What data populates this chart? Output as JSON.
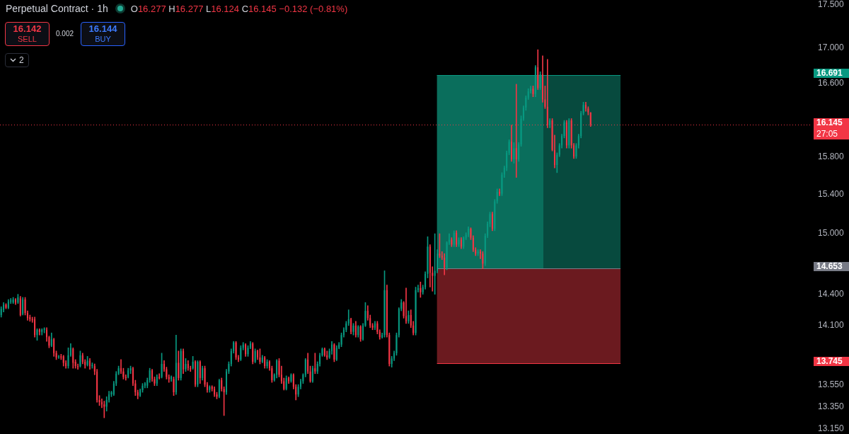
{
  "chart_data": {
    "type": "candlestick",
    "title": "Perpetual Contract · 1h",
    "annotations": [
      "O16.277 H16.277 L16.124 C16.145 −0.132 (−0.81%)",
      "16.142",
      "SELL",
      "0.002",
      "16.144",
      "BUY",
      "2",
      "27:05",
      "16.691",
      "14.653",
      "13.745"
    ],
    "categories": [
      null,
      null,
      null,
      null,
      null,
      null,
      null,
      null,
      null,
      null,
      null,
      null,
      null,
      null,
      null,
      null,
      null,
      null,
      null,
      null,
      null,
      null,
      null,
      null,
      null,
      null,
      null,
      null,
      null,
      null,
      null,
      null,
      null,
      null,
      null,
      null,
      null,
      null,
      null,
      null,
      null,
      null,
      null,
      null,
      null,
      null,
      null,
      null,
      null,
      null,
      null,
      null,
      null,
      null,
      null,
      null,
      null,
      null,
      null,
      null,
      null,
      null,
      null,
      null,
      null,
      null,
      null,
      null,
      null,
      null,
      null,
      null,
      null,
      null,
      null,
      null,
      null,
      null,
      null,
      null,
      null,
      null,
      null,
      null,
      null,
      null,
      null,
      null,
      null,
      null,
      null,
      null,
      null,
      null,
      null,
      null,
      null,
      null,
      null,
      null,
      null,
      null,
      null,
      null,
      null,
      null,
      null,
      null,
      null,
      null,
      null,
      null,
      null,
      null,
      null,
      null,
      null,
      null,
      null,
      null,
      null,
      null,
      null,
      null,
      null,
      null,
      null,
      null,
      null,
      null,
      null,
      null,
      null,
      null,
      null,
      null,
      null,
      null,
      null,
      null,
      null,
      null,
      null,
      null,
      null,
      null,
      null,
      null,
      null,
      null,
      null,
      null,
      null,
      null,
      null,
      null,
      null,
      null,
      null,
      null,
      null,
      null,
      null,
      null,
      null,
      null,
      null,
      null,
      null,
      null,
      null,
      null,
      null,
      null,
      null,
      null,
      null,
      null,
      null,
      null,
      null,
      null,
      null,
      null,
      null,
      null,
      null,
      null,
      null,
      null,
      null,
      null,
      null,
      null,
      null,
      null,
      null,
      null,
      null,
      null,
      null,
      null,
      null,
      null,
      null,
      null,
      null,
      null,
      null,
      null,
      null,
      null,
      null,
      null,
      null,
      null,
      null,
      null,
      null,
      null,
      null,
      null,
      null,
      null,
      null,
      null,
      null,
      null,
      null,
      null,
      null,
      null,
      null,
      null,
      null,
      null,
      null,
      null,
      null,
      null,
      null,
      null,
      null,
      null,
      null,
      null,
      null,
      null,
      null,
      null,
      null,
      null,
      null,
      null,
      null,
      null,
      null,
      null,
      null,
      null,
      null,
      null,
      null,
      null,
      null,
      null,
      null,
      null,
      null,
      null,
      null,
      null,
      null,
      null,
      null,
      null,
      null,
      null,
      null,
      null,
      null,
      null,
      null,
      null,
      null,
      null,
      null,
      null,
      null,
      null,
      null,
      null,
      null,
      null,
      null,
      null,
      null,
      null,
      null,
      null,
      null,
      null,
      null,
      null,
      null,
      null,
      null,
      null,
      null,
      null,
      null,
      null,
      null,
      null,
      null,
      null,
      null,
      null,
      null,
      null,
      null,
      null,
      null,
      null,
      null,
      null,
      null,
      null,
      null,
      null,
      null,
      null,
      null,
      null,
      null,
      null,
      null,
      null,
      null
    ],
    "ohlc": [
      [
        14.2,
        14.28,
        14.18,
        14.26
      ],
      [
        14.25,
        14.32,
        14.23,
        14.3
      ],
      [
        14.3,
        14.31,
        14.26,
        14.27
      ],
      [
        14.27,
        14.35,
        14.26,
        14.33
      ],
      [
        14.33,
        14.36,
        14.31,
        14.34
      ],
      [
        14.32,
        14.37,
        14.31,
        14.35
      ],
      [
        14.35,
        14.36,
        14.3,
        14.32
      ],
      [
        14.32,
        14.4,
        14.31,
        14.37
      ],
      [
        14.36,
        14.38,
        14.19,
        14.2
      ],
      [
        14.21,
        14.37,
        14.2,
        14.35
      ],
      [
        14.35,
        14.37,
        14.2,
        14.22
      ],
      [
        14.22,
        14.24,
        14.15,
        14.17
      ],
      [
        14.18,
        14.2,
        14.14,
        14.16
      ],
      [
        14.16,
        14.18,
        14.13,
        14.15
      ],
      [
        14.16,
        14.18,
        13.99,
        14.01
      ],
      [
        14.01,
        14.07,
        13.96,
        14.06
      ],
      [
        14.06,
        14.07,
        14.01,
        14.04
      ],
      [
        14.04,
        14.07,
        14.01,
        14.06
      ],
      [
        14.06,
        14.08,
        14.03,
        14.07
      ],
      [
        14.06,
        14.08,
        13.95,
        13.99
      ],
      [
        13.99,
        14.0,
        13.89,
        13.91
      ],
      [
        13.91,
        14.03,
        13.9,
        13.97
      ],
      [
        13.97,
        13.98,
        13.81,
        13.84
      ],
      [
        13.84,
        13.86,
        13.78,
        13.8
      ],
      [
        13.8,
        13.82,
        13.79,
        13.81
      ],
      [
        13.81,
        13.83,
        13.78,
        13.8
      ],
      [
        13.81,
        13.82,
        13.72,
        13.75
      ],
      [
        13.75,
        13.77,
        13.7,
        13.72
      ],
      [
        13.72,
        13.89,
        13.7,
        13.82
      ],
      [
        13.82,
        13.93,
        13.81,
        13.89
      ],
      [
        13.88,
        13.89,
        13.7,
        13.75
      ],
      [
        13.76,
        13.78,
        13.7,
        13.72
      ],
      [
        13.72,
        13.74,
        13.69,
        13.71
      ],
      [
        13.72,
        13.86,
        13.71,
        13.82
      ],
      [
        13.82,
        13.84,
        13.74,
        13.76
      ],
      [
        13.76,
        13.78,
        13.7,
        13.73
      ],
      [
        13.73,
        13.81,
        13.72,
        13.77
      ],
      [
        13.77,
        13.79,
        13.69,
        13.72
      ],
      [
        13.72,
        13.75,
        13.7,
        13.73
      ],
      [
        13.72,
        13.74,
        13.64,
        13.67
      ],
      [
        13.67,
        13.69,
        13.39,
        13.41
      ],
      [
        13.41,
        13.45,
        13.36,
        13.39
      ],
      [
        13.39,
        13.42,
        13.34,
        13.37
      ],
      [
        13.37,
        13.4,
        13.25,
        13.35
      ],
      [
        13.35,
        13.44,
        13.31,
        13.41
      ],
      [
        13.41,
        13.49,
        13.39,
        13.46
      ],
      [
        13.46,
        13.49,
        13.44,
        13.48
      ],
      [
        13.46,
        13.58,
        13.45,
        13.56
      ],
      [
        13.56,
        13.67,
        13.54,
        13.65
      ],
      [
        13.65,
        13.72,
        13.64,
        13.7
      ],
      [
        13.7,
        13.78,
        13.65,
        13.67
      ],
      [
        13.67,
        13.7,
        13.6,
        13.62
      ],
      [
        13.62,
        13.64,
        13.59,
        13.61
      ],
      [
        13.62,
        13.7,
        13.61,
        13.68
      ],
      [
        13.68,
        13.72,
        13.65,
        13.7
      ],
      [
        13.7,
        13.71,
        13.54,
        13.56
      ],
      [
        13.56,
        13.59,
        13.45,
        13.48
      ],
      [
        13.48,
        13.5,
        13.42,
        13.45
      ],
      [
        13.45,
        13.51,
        13.44,
        13.5
      ],
      [
        13.5,
        13.56,
        13.48,
        13.54
      ],
      [
        13.54,
        13.57,
        13.52,
        13.56
      ],
      [
        13.54,
        13.61,
        13.52,
        13.59
      ],
      [
        13.59,
        13.7,
        13.57,
        13.68
      ],
      [
        13.68,
        13.69,
        13.58,
        13.6
      ],
      [
        13.6,
        13.62,
        13.54,
        13.56
      ],
      [
        13.56,
        13.64,
        13.54,
        13.62
      ],
      [
        13.62,
        13.65,
        13.6,
        13.61
      ],
      [
        13.62,
        13.84,
        13.61,
        13.74
      ],
      [
        13.74,
        13.77,
        13.67,
        13.69
      ],
      [
        13.69,
        13.71,
        13.6,
        13.62
      ],
      [
        13.62,
        13.64,
        13.57,
        13.6
      ],
      [
        13.6,
        13.63,
        13.58,
        13.62
      ],
      [
        13.6,
        13.62,
        13.45,
        13.48
      ],
      [
        13.48,
        14.01,
        13.46,
        13.75
      ],
      [
        13.75,
        13.86,
        13.59,
        13.61
      ],
      [
        13.61,
        13.88,
        13.59,
        13.86
      ],
      [
        13.86,
        13.88,
        13.65,
        13.69
      ],
      [
        13.69,
        13.79,
        13.67,
        13.74
      ],
      [
        13.74,
        13.77,
        13.68,
        13.7
      ],
      [
        13.7,
        13.72,
        13.67,
        13.69
      ],
      [
        13.7,
        13.81,
        13.69,
        13.76
      ],
      [
        13.76,
        13.77,
        13.53,
        13.55
      ],
      [
        13.55,
        13.77,
        13.53,
        13.76
      ],
      [
        13.76,
        13.77,
        13.56,
        13.61
      ],
      [
        13.61,
        13.72,
        13.59,
        13.7
      ],
      [
        13.7,
        13.72,
        13.53,
        13.55
      ],
      [
        13.55,
        13.57,
        13.48,
        13.5
      ],
      [
        13.5,
        13.54,
        13.48,
        13.53
      ],
      [
        13.53,
        13.54,
        13.49,
        13.51
      ],
      [
        13.51,
        13.53,
        13.44,
        13.46
      ],
      [
        13.46,
        13.48,
        13.42,
        13.44
      ],
      [
        13.44,
        13.6,
        13.43,
        13.59
      ],
      [
        13.59,
        13.61,
        13.49,
        13.51
      ],
      [
        13.51,
        13.53,
        13.27,
        13.48
      ],
      [
        13.48,
        13.69,
        13.46,
        13.67
      ],
      [
        13.67,
        13.76,
        13.65,
        13.74
      ],
      [
        13.74,
        13.88,
        13.72,
        13.86
      ],
      [
        13.86,
        13.95,
        13.84,
        13.94
      ],
      [
        13.94,
        13.95,
        13.78,
        13.8
      ],
      [
        13.8,
        13.82,
        13.76,
        13.78
      ],
      [
        13.78,
        13.91,
        13.77,
        13.89
      ],
      [
        13.89,
        13.94,
        13.87,
        13.92
      ],
      [
        13.92,
        13.93,
        13.81,
        13.83
      ],
      [
        13.83,
        13.91,
        13.81,
        13.89
      ],
      [
        13.89,
        13.95,
        13.88,
        13.93
      ],
      [
        13.93,
        13.94,
        13.74,
        13.76
      ],
      [
        13.76,
        13.88,
        13.75,
        13.86
      ],
      [
        13.86,
        13.87,
        13.78,
        13.8
      ],
      [
        13.8,
        13.88,
        13.74,
        13.76
      ],
      [
        13.76,
        13.82,
        13.75,
        13.8
      ],
      [
        13.8,
        13.81,
        13.7,
        13.72
      ],
      [
        13.72,
        13.78,
        13.7,
        13.76
      ],
      [
        13.76,
        13.77,
        13.68,
        13.7
      ],
      [
        13.7,
        13.72,
        13.57,
        13.59
      ],
      [
        13.59,
        13.65,
        13.58,
        13.64
      ],
      [
        13.64,
        13.78,
        13.61,
        13.77
      ],
      [
        13.77,
        13.79,
        13.62,
        13.64
      ],
      [
        13.64,
        13.72,
        13.56,
        13.58
      ],
      [
        13.58,
        13.61,
        13.5,
        13.51
      ],
      [
        13.51,
        13.63,
        13.5,
        13.61
      ],
      [
        13.61,
        13.62,
        13.56,
        13.58
      ],
      [
        13.58,
        13.65,
        13.57,
        13.64
      ],
      [
        13.64,
        13.65,
        13.51,
        13.53
      ],
      [
        13.53,
        13.55,
        13.41,
        13.46
      ],
      [
        13.46,
        13.55,
        13.44,
        13.53
      ],
      [
        13.53,
        13.6,
        13.51,
        13.58
      ],
      [
        13.58,
        13.65,
        13.56,
        13.64
      ],
      [
        13.64,
        13.79,
        13.62,
        13.78
      ],
      [
        13.78,
        13.84,
        13.65,
        13.67
      ],
      [
        13.67,
        13.72,
        13.57,
        13.58
      ],
      [
        13.58,
        13.72,
        13.57,
        13.7
      ],
      [
        13.7,
        13.84,
        13.65,
        13.67
      ],
      [
        13.67,
        13.76,
        13.65,
        13.74
      ],
      [
        13.74,
        13.84,
        13.72,
        13.82
      ],
      [
        13.82,
        13.89,
        13.81,
        13.88
      ],
      [
        13.88,
        13.89,
        13.81,
        13.82
      ],
      [
        13.82,
        13.86,
        13.78,
        13.8
      ],
      [
        13.8,
        13.88,
        13.79,
        13.86
      ],
      [
        13.86,
        13.95,
        13.83,
        13.92
      ],
      [
        13.92,
        13.93,
        13.76,
        13.78
      ],
      [
        13.78,
        13.91,
        13.77,
        13.89
      ],
      [
        13.89,
        13.94,
        13.88,
        13.92
      ],
      [
        13.92,
        14.03,
        13.9,
        14.01
      ],
      [
        14.01,
        14.08,
        13.99,
        14.06
      ],
      [
        14.06,
        14.14,
        14.04,
        14.12
      ],
      [
        14.12,
        14.25,
        14.1,
        14.16
      ],
      [
        14.16,
        14.17,
        14.02,
        14.04
      ],
      [
        14.04,
        14.12,
        14.01,
        14.1
      ],
      [
        14.1,
        14.14,
        13.99,
        14.01
      ],
      [
        14.01,
        14.1,
        13.99,
        14.09
      ],
      [
        14.09,
        14.1,
        13.95,
        13.97
      ],
      [
        13.97,
        14.12,
        13.96,
        14.1
      ],
      [
        14.1,
        14.32,
        14.09,
        14.24
      ],
      [
        14.24,
        14.29,
        14.15,
        14.17
      ],
      [
        14.17,
        14.2,
        14.08,
        14.1
      ],
      [
        14.1,
        14.12,
        14.06,
        14.08
      ],
      [
        14.08,
        14.14,
        14.06,
        14.12
      ],
      [
        14.12,
        14.14,
        14.02,
        14.04
      ],
      [
        14.04,
        14.06,
        13.97,
        13.99
      ],
      [
        13.99,
        14.03,
        13.98,
        14.01
      ],
      [
        14.01,
        14.63,
        13.99,
        14.44
      ],
      [
        14.44,
        14.49,
        13.99,
        14.01
      ],
      [
        14.01,
        14.03,
        13.72,
        13.74
      ],
      [
        13.74,
        13.81,
        13.71,
        13.79
      ],
      [
        13.79,
        13.86,
        13.77,
        13.84
      ],
      [
        13.84,
        14.03,
        13.82,
        14.01
      ],
      [
        14.01,
        14.27,
        13.99,
        14.26
      ],
      [
        14.26,
        14.35,
        14.24,
        14.32
      ],
      [
        14.32,
        14.33,
        14.17,
        14.19
      ],
      [
        14.19,
        14.46,
        14.12,
        14.14
      ],
      [
        14.14,
        14.24,
        14.12,
        14.2
      ],
      [
        14.2,
        14.25,
        14.08,
        14.1
      ],
      [
        14.1,
        14.14,
        14.01,
        14.03
      ],
      [
        14.03,
        14.47,
        14.01,
        14.44
      ],
      [
        14.44,
        14.49,
        14.42,
        14.46
      ],
      [
        14.46,
        14.52,
        14.37,
        14.42
      ],
      [
        14.42,
        14.49,
        14.4,
        14.47
      ],
      [
        14.47,
        14.62,
        14.45,
        14.6
      ],
      [
        14.6,
        14.97,
        14.56,
        14.87
      ],
      [
        14.87,
        14.89,
        14.47,
        14.61
      ],
      [
        14.61,
        14.67,
        14.43,
        14.58
      ],
      [
        14.58,
        15.0,
        14.4,
        14.63
      ],
      [
        14.63,
        14.84,
        14.61,
        14.8
      ],
      [
        14.8,
        15.0,
        14.76,
        14.78
      ],
      [
        14.78,
        14.82,
        14.74,
        14.76
      ],
      [
        14.76,
        14.8,
        14.59,
        14.66
      ],
      [
        14.66,
        14.92,
        14.64,
        14.91
      ],
      [
        14.91,
        15.0,
        14.89,
        14.94
      ],
      [
        14.94,
        14.96,
        14.87,
        14.89
      ],
      [
        14.89,
        15.03,
        14.87,
        15.01
      ],
      [
        15.01,
        15.03,
        14.87,
        14.89
      ],
      [
        14.89,
        14.96,
        14.87,
        14.94
      ],
      [
        14.94,
        14.96,
        14.85,
        14.87
      ],
      [
        14.87,
        14.97,
        14.85,
        14.96
      ],
      [
        14.96,
        15.01,
        14.94,
        14.99
      ],
      [
        14.99,
        15.07,
        14.97,
        15.05
      ],
      [
        15.05,
        15.06,
        14.94,
        14.96
      ],
      [
        14.96,
        14.98,
        14.82,
        14.84
      ],
      [
        14.84,
        14.86,
        14.78,
        14.8
      ],
      [
        14.8,
        14.84,
        14.78,
        14.82
      ],
      [
        14.82,
        14.84,
        14.75,
        14.8
      ],
      [
        14.8,
        14.82,
        14.65,
        14.7
      ],
      [
        14.7,
        15.0,
        14.68,
        14.98
      ],
      [
        14.98,
        15.12,
        14.96,
        15.1
      ],
      [
        15.1,
        15.22,
        15.07,
        15.2
      ],
      [
        15.2,
        15.22,
        15.03,
        15.05
      ],
      [
        15.05,
        15.35,
        15.03,
        15.33
      ],
      [
        15.33,
        15.46,
        15.31,
        15.43
      ],
      [
        15.43,
        15.46,
        15.39,
        15.41
      ],
      [
        15.41,
        15.63,
        15.39,
        15.61
      ],
      [
        15.61,
        15.7,
        15.58,
        15.68
      ],
      [
        15.68,
        15.86,
        15.65,
        15.84
      ],
      [
        15.84,
        15.98,
        15.82,
        15.96
      ],
      [
        15.96,
        16.14,
        15.75,
        15.77
      ],
      [
        15.77,
        15.95,
        15.73,
        15.89
      ],
      [
        15.89,
        16.59,
        15.58,
        15.77
      ],
      [
        15.77,
        15.95,
        15.75,
        15.93
      ],
      [
        15.93,
        16.24,
        15.91,
        16.21
      ],
      [
        16.21,
        16.35,
        16.19,
        16.33
      ],
      [
        16.33,
        16.46,
        16.3,
        16.44
      ],
      [
        16.44,
        16.54,
        16.42,
        16.51
      ],
      [
        16.51,
        16.57,
        16.49,
        16.54
      ],
      [
        16.54,
        16.57,
        16.45,
        16.48
      ],
      [
        16.48,
        16.8,
        16.45,
        16.78
      ],
      [
        16.78,
        16.98,
        16.53,
        16.55
      ],
      [
        16.55,
        16.73,
        16.53,
        16.7
      ],
      [
        16.7,
        16.91,
        16.39,
        16.42
      ],
      [
        16.42,
        16.57,
        16.32,
        16.34
      ],
      [
        16.34,
        16.87,
        16.11,
        16.14
      ],
      [
        16.14,
        16.21,
        16.11,
        16.19
      ],
      [
        16.19,
        16.21,
        15.86,
        15.87
      ],
      [
        15.87,
        16.03,
        15.68,
        15.71
      ],
      [
        15.71,
        15.84,
        15.63,
        15.82
      ],
      [
        15.82,
        15.94,
        15.8,
        15.92
      ],
      [
        15.92,
        16.04,
        15.89,
        16.02
      ],
      [
        16.02,
        16.19,
        16.0,
        16.17
      ],
      [
        16.17,
        16.19,
        15.89,
        15.92
      ],
      [
        15.92,
        16.21,
        15.89,
        16.19
      ],
      [
        16.19,
        16.21,
        15.89,
        15.92
      ],
      [
        15.92,
        15.94,
        15.78,
        15.8
      ],
      [
        15.8,
        15.94,
        15.78,
        15.92
      ],
      [
        15.92,
        16.04,
        15.89,
        16.02
      ],
      [
        16.02,
        16.29,
        16.0,
        16.27
      ],
      [
        16.27,
        16.39,
        16.25,
        16.36
      ],
      [
        16.36,
        16.39,
        16.29,
        16.32
      ],
      [
        16.32,
        16.34,
        16.25,
        16.28
      ],
      [
        16.277,
        16.277,
        16.124,
        16.145
      ],
      null,
      null,
      null,
      null,
      null,
      null,
      null,
      null,
      null,
      null,
      null,
      null,
      null,
      null,
      null,
      null,
      null,
      null,
      null,
      null,
      null,
      null,
      null,
      null,
      null,
      null,
      null,
      null,
      null,
      null,
      null,
      null,
      null,
      null,
      null,
      null,
      null,
      null,
      null,
      null,
      null,
      null,
      null,
      null,
      null,
      null,
      null,
      null,
      null,
      null,
      null,
      null,
      null,
      null,
      null,
      null,
      null,
      null,
      null,
      null,
      null,
      null,
      null,
      null,
      null,
      null,
      null,
      null,
      null,
      null,
      null,
      null,
      null,
      null,
      null,
      null,
      null,
      null,
      null,
      null,
      null,
      null,
      null,
      null,
      null,
      null,
      null,
      null,
      null,
      null,
      null,
      null
    ],
    "log": true,
    "ylim": [
      13.15,
      17.5
    ],
    "yticks": [
      {
        "value": 13.15,
        "label": "13.150"
      },
      {
        "value": 13.35,
        "label": "13.350"
      },
      {
        "value": 13.55,
        "label": "13.550"
      },
      {
        "value": 14.1,
        "label": "14.100"
      },
      {
        "value": 14.4,
        "label": "14.400"
      },
      {
        "value": 15,
        "label": "15.000"
      },
      {
        "value": 15.4,
        "label": "15.400"
      },
      {
        "value": 15.8,
        "label": "15.800"
      },
      {
        "value": 16.6,
        "label": "16.600"
      },
      {
        "value": 17,
        "label": "17.000"
      },
      {
        "value": 17.5,
        "label": "17.500"
      }
    ],
    "tick_labels": "y",
    "bands": [
      {
        "axis": "y",
        "from": 14.653,
        "to": 16.691,
        "color": "#0a6e5c"
      },
      {
        "axis": "y",
        "from": 13.745,
        "to": 14.653,
        "color": "#6b1a1f"
      }
    ],
    "ref_lines": [
      {
        "axis": "y",
        "value": 16.691,
        "color": "#089981",
        "line_style": "solid"
      },
      {
        "axis": "y",
        "value": 16.145,
        "label": "16.145",
        "color": "#f23645",
        "line_style": "dotted"
      },
      {
        "axis": "y",
        "value": 14.653,
        "color": "#787b86",
        "line_style": "solid"
      },
      {
        "axis": "y",
        "value": 13.745,
        "color": "#f23645",
        "line_style": "solid"
      }
    ]
  }
}
